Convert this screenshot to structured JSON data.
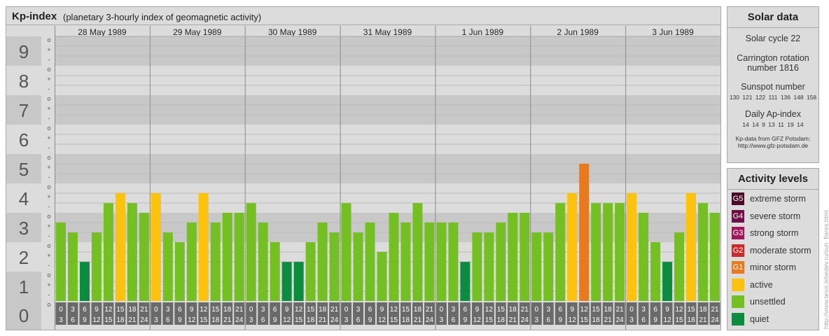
{
  "header": {
    "title": "Kp-index",
    "subtitle": "(planetary 3-hourly index of geomagnetic activity)"
  },
  "chart_data": {
    "type": "bar",
    "title": "Kp-index",
    "subtitle": "(planetary 3-hourly index of geomagnetic activity)",
    "y_labels": [
      "0",
      "1",
      "2",
      "3",
      "4",
      "5",
      "6",
      "7",
      "8",
      "9"
    ],
    "y_minor_labels": [
      "o",
      "+",
      "-"
    ],
    "ylim": [
      0,
      9
    ],
    "days": [
      "28 May 1989",
      "29 May 1989",
      "30 May 1989",
      "31 May 1989",
      "1 Jun 1989",
      "2 Jun 1989",
      "3 Jun 1989"
    ],
    "interval_start_hours": [
      "0",
      "3",
      "6",
      "9",
      "12",
      "15",
      "18",
      "21"
    ],
    "interval_end_hours": [
      "3",
      "6",
      "9",
      "12",
      "15",
      "18",
      "21",
      "24"
    ],
    "values": [
      [
        2.67,
        2.33,
        1.33,
        2.33,
        3.33,
        3.67,
        3.33,
        3.0
      ],
      [
        3.67,
        2.33,
        2.0,
        2.67,
        3.67,
        2.67,
        3.0,
        3.0
      ],
      [
        3.33,
        2.67,
        2.0,
        1.33,
        1.33,
        2.0,
        2.67,
        2.33
      ],
      [
        3.33,
        2.33,
        2.67,
        1.67,
        3.0,
        2.67,
        3.33,
        2.67
      ],
      [
        2.67,
        2.67,
        1.33,
        2.33,
        2.33,
        2.67,
        3.0,
        3.0
      ],
      [
        2.33,
        2.33,
        3.33,
        3.67,
        4.67,
        3.33,
        3.33,
        3.33
      ],
      [
        3.67,
        3.0,
        2.0,
        1.33,
        2.33,
        3.67,
        3.33,
        3.0
      ]
    ]
  },
  "solar": {
    "title": "Solar data",
    "cycle": "Solar cycle 22",
    "carrington_line1": "Carrington rotation",
    "carrington_line2": "number 1816",
    "sunspot_label": "Sunspot number",
    "sunspot_values": [
      "130",
      "121",
      "122",
      "111",
      "136",
      "148",
      "158"
    ],
    "ap_label": "Daily Ap-index",
    "ap_values": [
      "14",
      "14",
      "9",
      "13",
      "11",
      "19",
      "14"
    ],
    "source_line1": "Kp-data from GFZ Potsdam:",
    "source_line2": "http://www.gfz-potsdam.de"
  },
  "activity": {
    "title": "Activity levels",
    "levels": [
      {
        "badge": "G5",
        "label": "extreme storm",
        "color": "#4b0a26"
      },
      {
        "badge": "G4",
        "label": "severe storm",
        "color": "#6e0f46"
      },
      {
        "badge": "G3",
        "label": "strong storm",
        "color": "#a3165a"
      },
      {
        "badge": "G2",
        "label": "moderate storm",
        "color": "#cc2b2b"
      },
      {
        "badge": "G1",
        "label": "minor storm",
        "color": "#e87a1e"
      },
      {
        "badge": "",
        "label": "active",
        "color": "#fcc20c"
      },
      {
        "badge": "",
        "label": "unsettled",
        "color": "#74bf21"
      },
      {
        "badge": "",
        "label": "quiet",
        "color": "#0c8c3e"
      }
    ]
  },
  "credit": "http://www.tesis.lebedev.ru/sun_flares.html"
}
